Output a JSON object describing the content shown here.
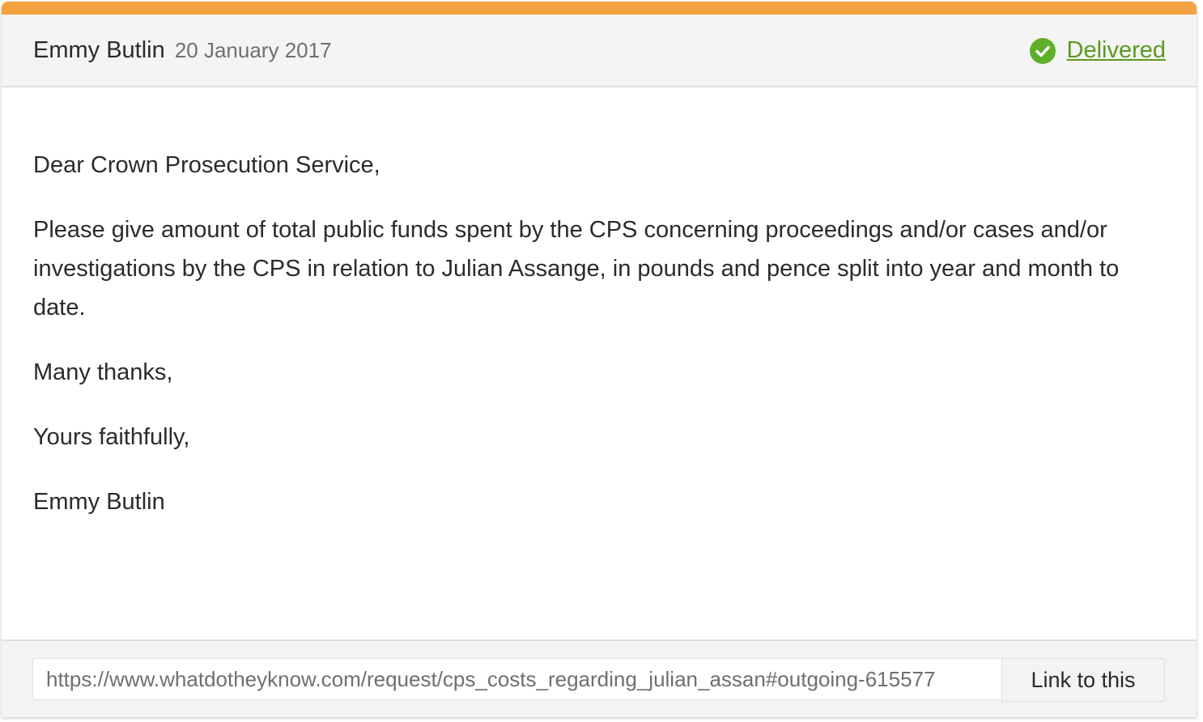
{
  "message": {
    "author": "Emmy Butlin",
    "date": "20 January 2017",
    "status": {
      "label": "Delivered",
      "icon": "check-circle-icon",
      "color": "#5a9a1e"
    },
    "accent_color": "#f5a340",
    "paragraphs": [
      "Dear Crown Prosecution Service,",
      "Please give amount of total public funds spent by the CPS concerning proceedings and/or cases and/or investigations by the CPS in relation to Julian Assange, in pounds and pence split into year and month to date.",
      "Many thanks,",
      "Yours faithfully,",
      "Emmy Butlin"
    ],
    "permalink": "https://www.whatdotheyknow.com/request/cps_costs_regarding_julian_assan#outgoing-615577",
    "link_button": "Link to this"
  }
}
